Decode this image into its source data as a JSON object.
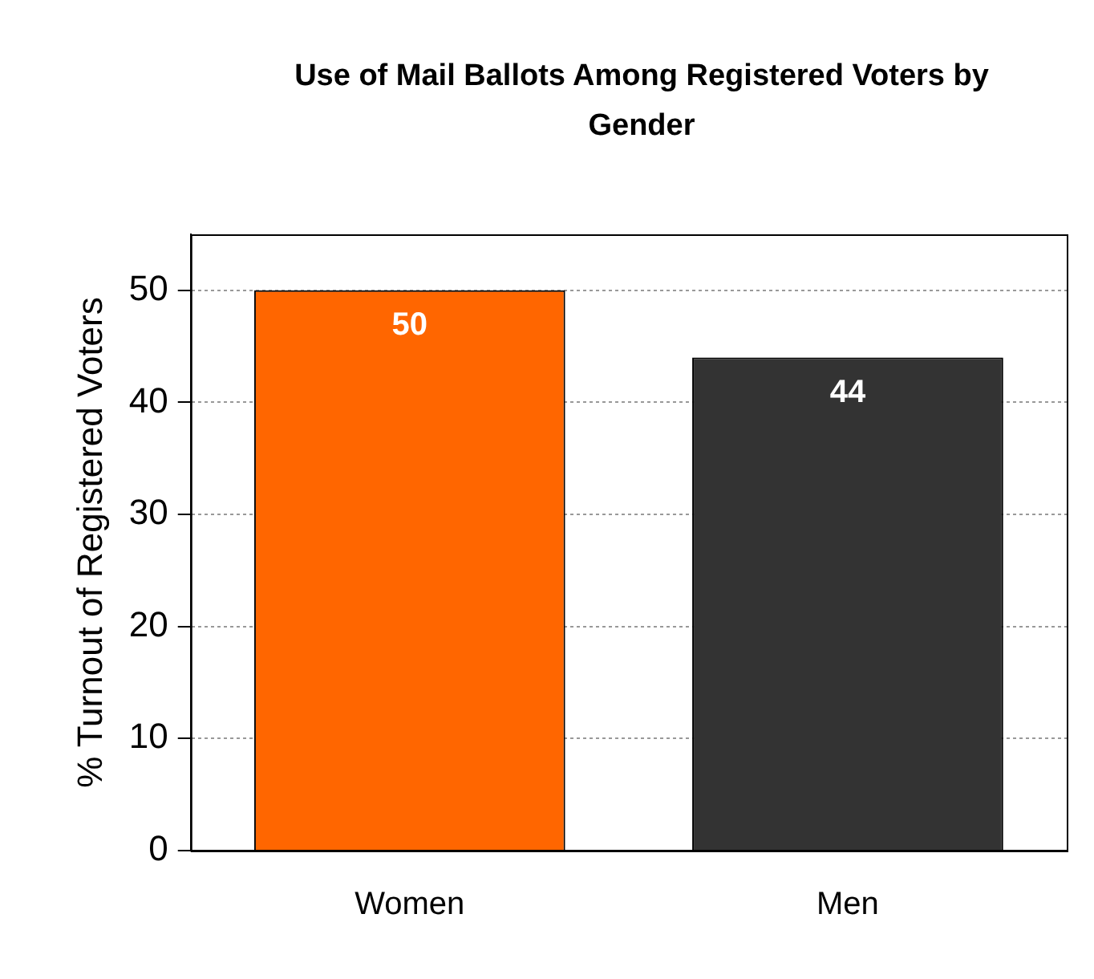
{
  "chart_data": {
    "type": "bar",
    "title": "Use of Mail Ballots Among Registered Voters by Gender",
    "ylabel": "% Turnout of Registered Voters",
    "categories": [
      "Women",
      "Men"
    ],
    "colors": [
      "#ff6600",
      "#333333"
    ],
    "values": [
      50,
      44
    ],
    "ylim": [
      0,
      55
    ],
    "yticks": [
      0,
      10,
      20,
      30,
      40,
      50
    ],
    "grid": "y",
    "data_labels": true,
    "legend": false
  }
}
